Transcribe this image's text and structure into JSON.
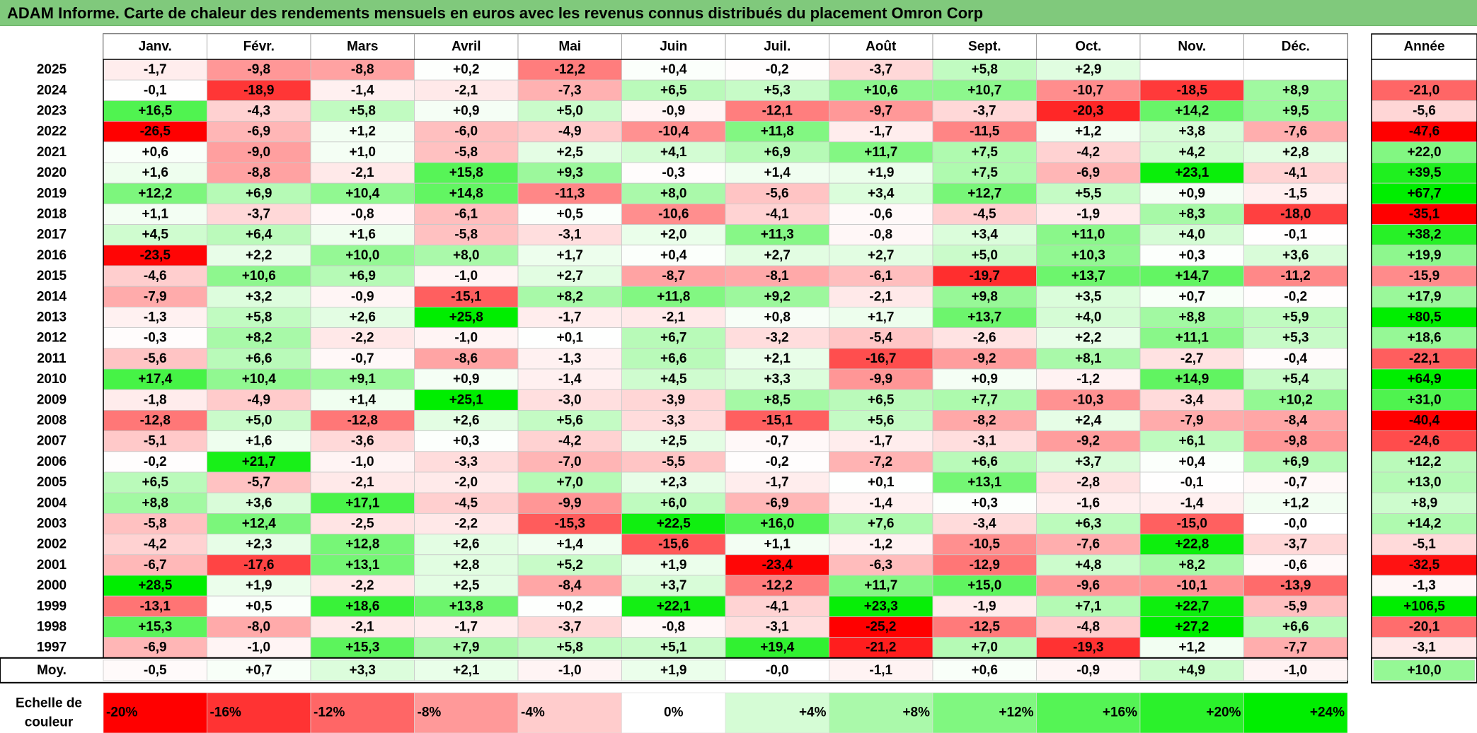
{
  "title": "ADAM Informe. Carte de chaleur des rendements mensuels en euros avec les revenus connus distribués du placement Omron Corp",
  "colors": {
    "title_bg": "#80c97c",
    "neg_max": "#ff0000",
    "pos_max": "#00ee00",
    "neutral": "#ffffff"
  },
  "chart_data": {
    "type": "heatmap",
    "title": "ADAM Informe. Carte de chaleur des rendements mensuels en euros avec les revenus connus distribués du placement Omron Corp",
    "months": [
      "Janv.",
      "Févr.",
      "Mars",
      "Avril",
      "Mai",
      "Juin",
      "Juil.",
      "Août",
      "Sept.",
      "Oct.",
      "Nov.",
      "Déc."
    ],
    "annual_header": "Année",
    "rows": [
      {
        "year": "2025",
        "values": [
          "-1,7",
          "-9,8",
          "-8,8",
          "+0,2",
          "-12,2",
          "+0,4",
          "-0,2",
          "-3,7",
          "+5,8",
          "+2,9",
          "",
          ""
        ],
        "annual": ""
      },
      {
        "year": "2024",
        "values": [
          "-0,1",
          "-18,9",
          "-1,4",
          "-2,1",
          "-7,3",
          "+6,5",
          "+5,3",
          "+10,6",
          "+10,7",
          "-10,7",
          "-18,5",
          "+8,9"
        ],
        "annual": "-21,0"
      },
      {
        "year": "2023",
        "values": [
          "+16,5",
          "-4,3",
          "+5,8",
          "+0,9",
          "+5,0",
          "-0,9",
          "-12,1",
          "-9,7",
          "-3,7",
          "-20,3",
          "+14,2",
          "+9,5"
        ],
        "annual": "-5,6"
      },
      {
        "year": "2022",
        "values": [
          "-26,5",
          "-6,9",
          "+1,2",
          "-6,0",
          "-4,9",
          "-10,4",
          "+11,8",
          "-1,7",
          "-11,5",
          "+1,2",
          "+3,8",
          "-7,6"
        ],
        "annual": "-47,6"
      },
      {
        "year": "2021",
        "values": [
          "+0,6",
          "-9,0",
          "+1,0",
          "-5,8",
          "+2,5",
          "+4,1",
          "+6,9",
          "+11,7",
          "+7,5",
          "-4,2",
          "+4,2",
          "+2,8"
        ],
        "annual": "+22,0"
      },
      {
        "year": "2020",
        "values": [
          "+1,6",
          "-8,8",
          "-2,1",
          "+15,8",
          "+9,3",
          "-0,3",
          "+1,4",
          "+1,9",
          "+7,5",
          "-6,9",
          "+23,1",
          "-4,1"
        ],
        "annual": "+39,5"
      },
      {
        "year": "2019",
        "values": [
          "+12,2",
          "+6,9",
          "+10,4",
          "+14,8",
          "-11,3",
          "+8,0",
          "-5,6",
          "+3,4",
          "+12,7",
          "+5,5",
          "+0,9",
          "-1,5"
        ],
        "annual": "+67,7"
      },
      {
        "year": "2018",
        "values": [
          "+1,1",
          "-3,7",
          "-0,8",
          "-6,1",
          "+0,5",
          "-10,6",
          "-4,1",
          "-0,6",
          "-4,5",
          "-1,9",
          "+8,3",
          "-18,0"
        ],
        "annual": "-35,1"
      },
      {
        "year": "2017",
        "values": [
          "+4,5",
          "+6,4",
          "+1,6",
          "-5,8",
          "-3,1",
          "+2,0",
          "+11,3",
          "-0,8",
          "+3,4",
          "+11,0",
          "+4,0",
          "-0,1"
        ],
        "annual": "+38,2"
      },
      {
        "year": "2016",
        "values": [
          "-23,5",
          "+2,2",
          "+10,0",
          "+8,0",
          "+1,7",
          "+0,4",
          "+2,7",
          "+2,7",
          "+5,0",
          "+10,3",
          "+0,3",
          "+3,6"
        ],
        "annual": "+19,9"
      },
      {
        "year": "2015",
        "values": [
          "-4,6",
          "+10,6",
          "+6,9",
          "-1,0",
          "+2,7",
          "-8,7",
          "-8,1",
          "-6,1",
          "-19,7",
          "+13,7",
          "+14,7",
          "-11,2"
        ],
        "annual": "-15,9"
      },
      {
        "year": "2014",
        "values": [
          "-7,9",
          "+3,2",
          "-0,9",
          "-15,1",
          "+8,2",
          "+11,8",
          "+9,2",
          "-2,1",
          "+9,8",
          "+3,5",
          "+0,7",
          "-0,2"
        ],
        "annual": "+17,9"
      },
      {
        "year": "2013",
        "values": [
          "-1,3",
          "+5,8",
          "+2,6",
          "+25,8",
          "-1,7",
          "-2,1",
          "+0,8",
          "+1,7",
          "+13,7",
          "+4,0",
          "+8,8",
          "+5,9"
        ],
        "annual": "+80,5"
      },
      {
        "year": "2012",
        "values": [
          "-0,3",
          "+8,2",
          "-2,2",
          "-1,0",
          "+0,1",
          "+6,7",
          "-3,2",
          "-5,4",
          "-2,6",
          "+2,2",
          "+11,1",
          "+5,3"
        ],
        "annual": "+18,6"
      },
      {
        "year": "2011",
        "values": [
          "-5,6",
          "+6,6",
          "-0,7",
          "-8,6",
          "-1,3",
          "+6,6",
          "+2,1",
          "-16,7",
          "-9,2",
          "+8,1",
          "-2,7",
          "-0,4"
        ],
        "annual": "-22,1"
      },
      {
        "year": "2010",
        "values": [
          "+17,4",
          "+10,4",
          "+9,1",
          "+0,9",
          "-1,4",
          "+4,5",
          "+3,3",
          "-9,9",
          "+0,9",
          "-1,2",
          "+14,9",
          "+5,4"
        ],
        "annual": "+64,9"
      },
      {
        "year": "2009",
        "values": [
          "-1,8",
          "-4,9",
          "+1,4",
          "+25,1",
          "-3,0",
          "-3,9",
          "+8,5",
          "+6,5",
          "+7,7",
          "-10,3",
          "-3,4",
          "+10,2"
        ],
        "annual": "+31,0"
      },
      {
        "year": "2008",
        "values": [
          "-12,8",
          "+5,0",
          "-12,8",
          "+2,6",
          "+5,6",
          "-3,3",
          "-15,1",
          "+5,6",
          "-8,2",
          "+2,4",
          "-7,9",
          "-8,4"
        ],
        "annual": "-40,4"
      },
      {
        "year": "2007",
        "values": [
          "-5,1",
          "+1,6",
          "-3,6",
          "+0,3",
          "-4,2",
          "+2,5",
          "-0,7",
          "-1,7",
          "-3,1",
          "-9,2",
          "+6,1",
          "-9,8"
        ],
        "annual": "-24,6"
      },
      {
        "year": "2006",
        "values": [
          "-0,2",
          "+21,7",
          "-1,0",
          "-3,3",
          "-7,0",
          "-5,5",
          "-0,2",
          "-7,2",
          "+6,6",
          "+3,7",
          "+0,4",
          "+6,9"
        ],
        "annual": "+12,2"
      },
      {
        "year": "2005",
        "values": [
          "+6,5",
          "-5,7",
          "-2,1",
          "-2,0",
          "+7,0",
          "+2,3",
          "-1,7",
          "+0,1",
          "+13,1",
          "-2,8",
          "-0,1",
          "-0,7"
        ],
        "annual": "+13,0"
      },
      {
        "year": "2004",
        "values": [
          "+8,8",
          "+3,6",
          "+17,1",
          "-4,5",
          "-9,9",
          "+6,0",
          "-6,9",
          "-1,4",
          "+0,3",
          "-1,6",
          "-1,4",
          "+1,2"
        ],
        "annual": "+8,9"
      },
      {
        "year": "2003",
        "values": [
          "-5,8",
          "+12,4",
          "-2,5",
          "-2,2",
          "-15,3",
          "+22,5",
          "+16,0",
          "+7,6",
          "-3,4",
          "+6,3",
          "-15,0",
          "-0,0"
        ],
        "annual": "+14,2"
      },
      {
        "year": "2002",
        "values": [
          "-4,2",
          "+2,3",
          "+12,8",
          "+2,6",
          "+1,4",
          "-15,6",
          "+1,1",
          "-1,2",
          "-10,5",
          "-7,6",
          "+22,8",
          "-3,7"
        ],
        "annual": "-5,1"
      },
      {
        "year": "2001",
        "values": [
          "-6,7",
          "-17,6",
          "+13,1",
          "+2,8",
          "+5,2",
          "+1,9",
          "-23,4",
          "-6,3",
          "-12,9",
          "+4,8",
          "+8,2",
          "-0,6"
        ],
        "annual": "-32,5"
      },
      {
        "year": "2000",
        "values": [
          "+28,5",
          "+1,9",
          "-2,2",
          "+2,5",
          "-8,4",
          "+3,7",
          "-12,2",
          "+11,7",
          "+15,0",
          "-9,6",
          "-10,1",
          "-13,9"
        ],
        "annual": "-1,3"
      },
      {
        "year": "1999",
        "values": [
          "-13,1",
          "+0,5",
          "+18,6",
          "+13,8",
          "+0,2",
          "+22,1",
          "-4,1",
          "+23,3",
          "-1,9",
          "+7,1",
          "+22,7",
          "-5,9"
        ],
        "annual": "+106,5"
      },
      {
        "year": "1998",
        "values": [
          "+15,3",
          "-8,0",
          "-2,1",
          "-1,7",
          "-3,7",
          "-0,8",
          "-3,1",
          "-25,2",
          "-12,5",
          "-4,8",
          "+27,2",
          "+6,6"
        ],
        "annual": "-20,1"
      },
      {
        "year": "1997",
        "values": [
          "-6,9",
          "-1,0",
          "+15,3",
          "+7,9",
          "+5,8",
          "+5,1",
          "+19,4",
          "-21,2",
          "+7,0",
          "-19,3",
          "+1,2",
          "-7,7"
        ],
        "annual": "-3,1"
      }
    ],
    "average": {
      "label": "Moy.",
      "values": [
        "-0,5",
        "+0,7",
        "+3,3",
        "+2,1",
        "-1,0",
        "+1,9",
        "-0,0",
        "-1,1",
        "+0,6",
        "-0,9",
        "+4,9",
        "-1,0"
      ],
      "annual": "+10,0"
    },
    "scale": {
      "label_lines": [
        "Echelle de",
        "couleur"
      ],
      "steps": [
        {
          "label": "-20%",
          "value": -20
        },
        {
          "label": "-16%",
          "value": -16
        },
        {
          "label": "-12%",
          "value": -12
        },
        {
          "label": "-8%",
          "value": -8
        },
        {
          "label": "-4%",
          "value": -4
        },
        {
          "label": "0%",
          "value": 0
        },
        {
          "label": "+4%",
          "value": 4
        },
        {
          "label": "+8%",
          "value": 8
        },
        {
          "label": "+12%",
          "value": 12
        },
        {
          "label": "+16%",
          "value": 16
        },
        {
          "label": "+20%",
          "value": 20
        },
        {
          "label": "+24%",
          "value": 24
        }
      ]
    }
  }
}
